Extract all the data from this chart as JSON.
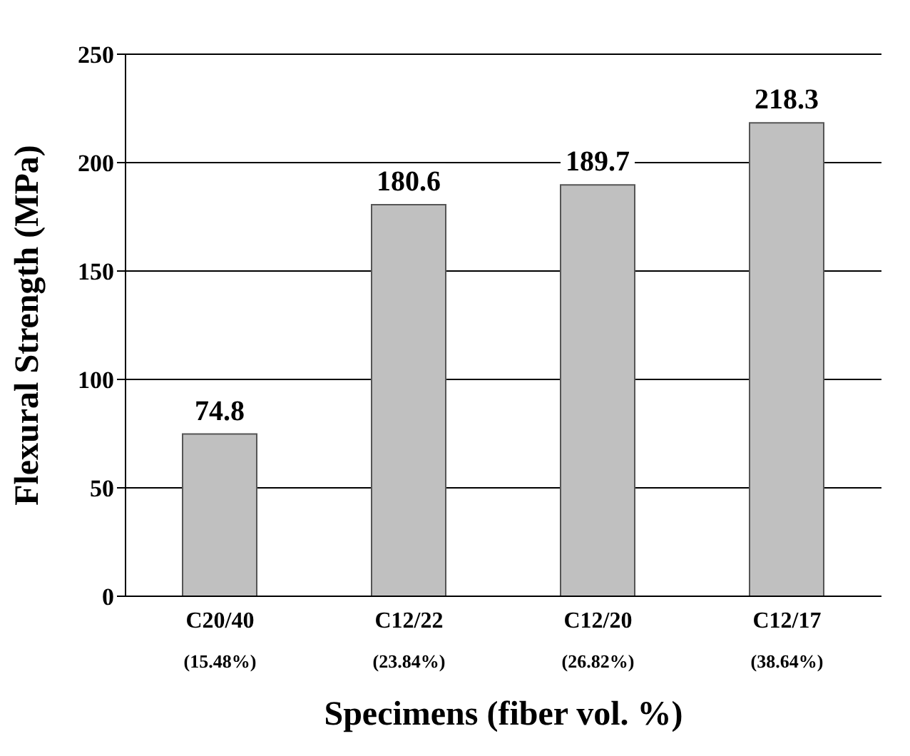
{
  "chart_data": {
    "type": "bar",
    "xlabel": "Specimens (fiber vol. %)",
    "ylabel": "Flexural Strength (MPa)",
    "categories": [
      "C20/40 (15.48%)",
      "C12/22 (23.84%)",
      "C12/20 (26.82%)",
      "C12/17 (38.64%)"
    ],
    "values": [
      74.8,
      180.6,
      189.7,
      218.3
    ],
    "color": "#c0c0c0",
    "ylim": [
      0,
      250
    ],
    "yticks": [
      0,
      50,
      100,
      150,
      200,
      250
    ],
    "grid": "y",
    "data_labels": true
  }
}
